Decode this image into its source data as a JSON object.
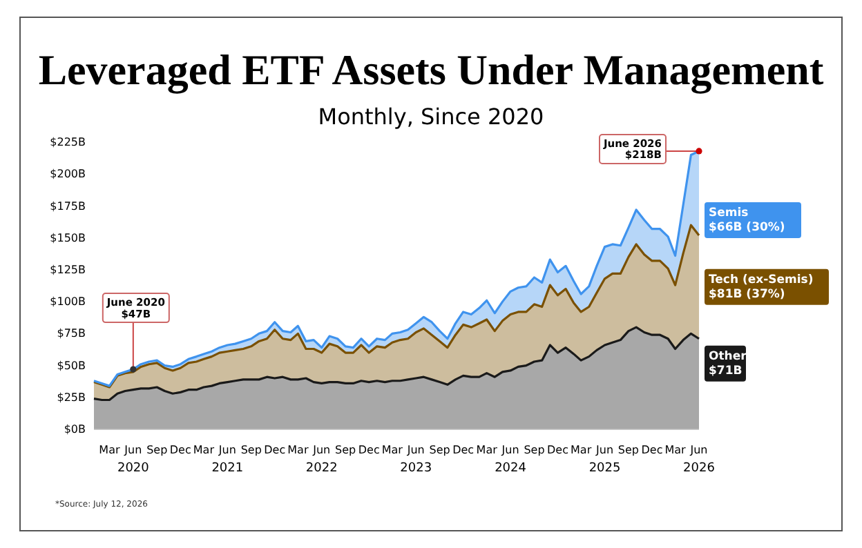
{
  "chart_data": {
    "type": "area",
    "stacked": true,
    "title": "Leveraged ETF Assets Under Management",
    "subtitle": "Monthly, Since 2020",
    "x": [
      "2020-01",
      "2020-02",
      "2020-03",
      "2020-04",
      "2020-05",
      "2020-06",
      "2020-07",
      "2020-08",
      "2020-09",
      "2020-10",
      "2020-11",
      "2020-12",
      "2021-01",
      "2021-02",
      "2021-03",
      "2021-04",
      "2021-05",
      "2021-06",
      "2021-07",
      "2021-08",
      "2021-09",
      "2021-10",
      "2021-11",
      "2021-12",
      "2022-01",
      "2022-02",
      "2022-03",
      "2022-04",
      "2022-05",
      "2022-06",
      "2022-07",
      "2022-08",
      "2022-09",
      "2022-10",
      "2022-11",
      "2022-12",
      "2023-01",
      "2023-02",
      "2023-03",
      "2023-04",
      "2023-05",
      "2023-06",
      "2023-07",
      "2023-08",
      "2023-09",
      "2023-10",
      "2023-11",
      "2023-12",
      "2024-01",
      "2024-02",
      "2024-03",
      "2024-04",
      "2024-05",
      "2024-06",
      "2024-07",
      "2024-08",
      "2024-09",
      "2024-10",
      "2024-11",
      "2024-12",
      "2025-01",
      "2025-02",
      "2025-03",
      "2025-04",
      "2025-05",
      "2025-06",
      "2025-07",
      "2025-08",
      "2025-09",
      "2025-10",
      "2025-11",
      "2025-12",
      "2026-01",
      "2026-02",
      "2026-03",
      "2026-04",
      "2026-05",
      "2026-06"
    ],
    "series": [
      {
        "name": "Other",
        "color": "#1a1a1a",
        "values": [
          24,
          23,
          23,
          28,
          30,
          31,
          32,
          32,
          33,
          30,
          28,
          29,
          31,
          31,
          33,
          34,
          36,
          37,
          38,
          39,
          39,
          39,
          41,
          40,
          41,
          39,
          39,
          40,
          37,
          36,
          37,
          37,
          36,
          36,
          38,
          37,
          38,
          37,
          38,
          38,
          39,
          40,
          41,
          39,
          37,
          35,
          39,
          42,
          41,
          41,
          44,
          41,
          45,
          46,
          49,
          50,
          53,
          54,
          66,
          60,
          64,
          59,
          54,
          57,
          62,
          66,
          68,
          70,
          77,
          80,
          76,
          74,
          74,
          71,
          63,
          70,
          75,
          71
        ]
      },
      {
        "name": "Tech (ex-Semis)",
        "color": "#7a5000",
        "values": [
          13,
          12,
          10,
          14,
          14,
          14,
          17,
          19,
          19,
          18,
          18,
          19,
          21,
          22,
          22,
          23,
          24,
          24,
          24,
          24,
          26,
          30,
          30,
          38,
          30,
          31,
          36,
          23,
          26,
          24,
          30,
          28,
          24,
          24,
          28,
          23,
          27,
          27,
          30,
          32,
          32,
          36,
          38,
          35,
          32,
          29,
          35,
          40,
          39,
          42,
          42,
          36,
          40,
          44,
          43,
          42,
          45,
          42,
          47,
          45,
          46,
          40,
          38,
          39,
          45,
          52,
          54,
          52,
          58,
          65,
          61,
          58,
          58,
          55,
          50,
          68,
          85,
          81
        ]
      },
      {
        "name": "Semis",
        "color": "#3f93ee",
        "values": [
          1,
          1,
          1,
          1,
          1,
          2,
          2,
          2,
          2,
          2,
          3,
          3,
          3,
          4,
          4,
          4,
          4,
          5,
          5,
          6,
          6,
          6,
          6,
          6,
          6,
          6,
          6,
          6,
          7,
          4,
          6,
          6,
          5,
          4,
          5,
          5,
          6,
          6,
          7,
          6,
          7,
          7,
          9,
          10,
          8,
          7,
          9,
          10,
          10,
          12,
          15,
          14,
          15,
          18,
          19,
          20,
          21,
          19,
          20,
          18,
          18,
          17,
          14,
          16,
          21,
          25,
          23,
          22,
          23,
          27,
          27,
          25,
          25,
          25,
          23,
          38,
          55,
          66
        ]
      }
    ],
    "xlim": [
      "2020-01",
      "2026-06"
    ],
    "xticks": [
      {
        "value": "2020-03",
        "label": "Mar"
      },
      {
        "value": "2020-06",
        "label": "Jun\n2020"
      },
      {
        "value": "2020-09",
        "label": "Sep"
      },
      {
        "value": "2020-12",
        "label": "Dec"
      },
      {
        "value": "2021-03",
        "label": "Mar"
      },
      {
        "value": "2021-06",
        "label": "Jun\n2021"
      },
      {
        "value": "2021-09",
        "label": "Sep"
      },
      {
        "value": "2021-12",
        "label": "Dec"
      },
      {
        "value": "2022-03",
        "label": "Mar"
      },
      {
        "value": "2022-06",
        "label": "Jun\n2022"
      },
      {
        "value": "2022-09",
        "label": "Sep"
      },
      {
        "value": "2022-12",
        "label": "Dec"
      },
      {
        "value": "2023-03",
        "label": "Mar"
      },
      {
        "value": "2023-06",
        "label": "Jun\n2023"
      },
      {
        "value": "2023-09",
        "label": "Sep"
      },
      {
        "value": "2023-12",
        "label": "Dec"
      },
      {
        "value": "2024-03",
        "label": "Mar"
      },
      {
        "value": "2024-06",
        "label": "Jun\n2024"
      },
      {
        "value": "2024-09",
        "label": "Sep"
      },
      {
        "value": "2024-12",
        "label": "Dec"
      },
      {
        "value": "2025-03",
        "label": "Mar"
      },
      {
        "value": "2025-06",
        "label": "Jun\n2025"
      },
      {
        "value": "2025-09",
        "label": "Sep"
      },
      {
        "value": "2025-12",
        "label": "Dec"
      },
      {
        "value": "2026-03",
        "label": "Mar"
      },
      {
        "value": "2026-06",
        "label": "Jun\n2026"
      }
    ],
    "ylim": [
      0,
      225
    ],
    "yticks": [
      {
        "value": 0,
        "label": "$0B"
      },
      {
        "value": 25,
        "label": "$25B"
      },
      {
        "value": 50,
        "label": "$50B"
      },
      {
        "value": 75,
        "label": "$75B"
      },
      {
        "value": 100,
        "label": "$100B"
      },
      {
        "value": 125,
        "label": "$125B"
      },
      {
        "value": 150,
        "label": "$150B"
      },
      {
        "value": 175,
        "label": "$175B"
      },
      {
        "value": 200,
        "label": "$200B"
      },
      {
        "value": 225,
        "label": "$225B"
      }
    ],
    "grid": false,
    "legend": "right",
    "annotations": [
      {
        "text": "June 2020\n$47B",
        "x": "2020-06",
        "y": 47
      },
      {
        "text": "June 2026\n$218B",
        "x": "2026-06",
        "y": 218
      },
      "$71B",
      "$81B (37%)",
      "$66B (30%)",
      "*Source: July 12, 2026"
    ]
  }
}
